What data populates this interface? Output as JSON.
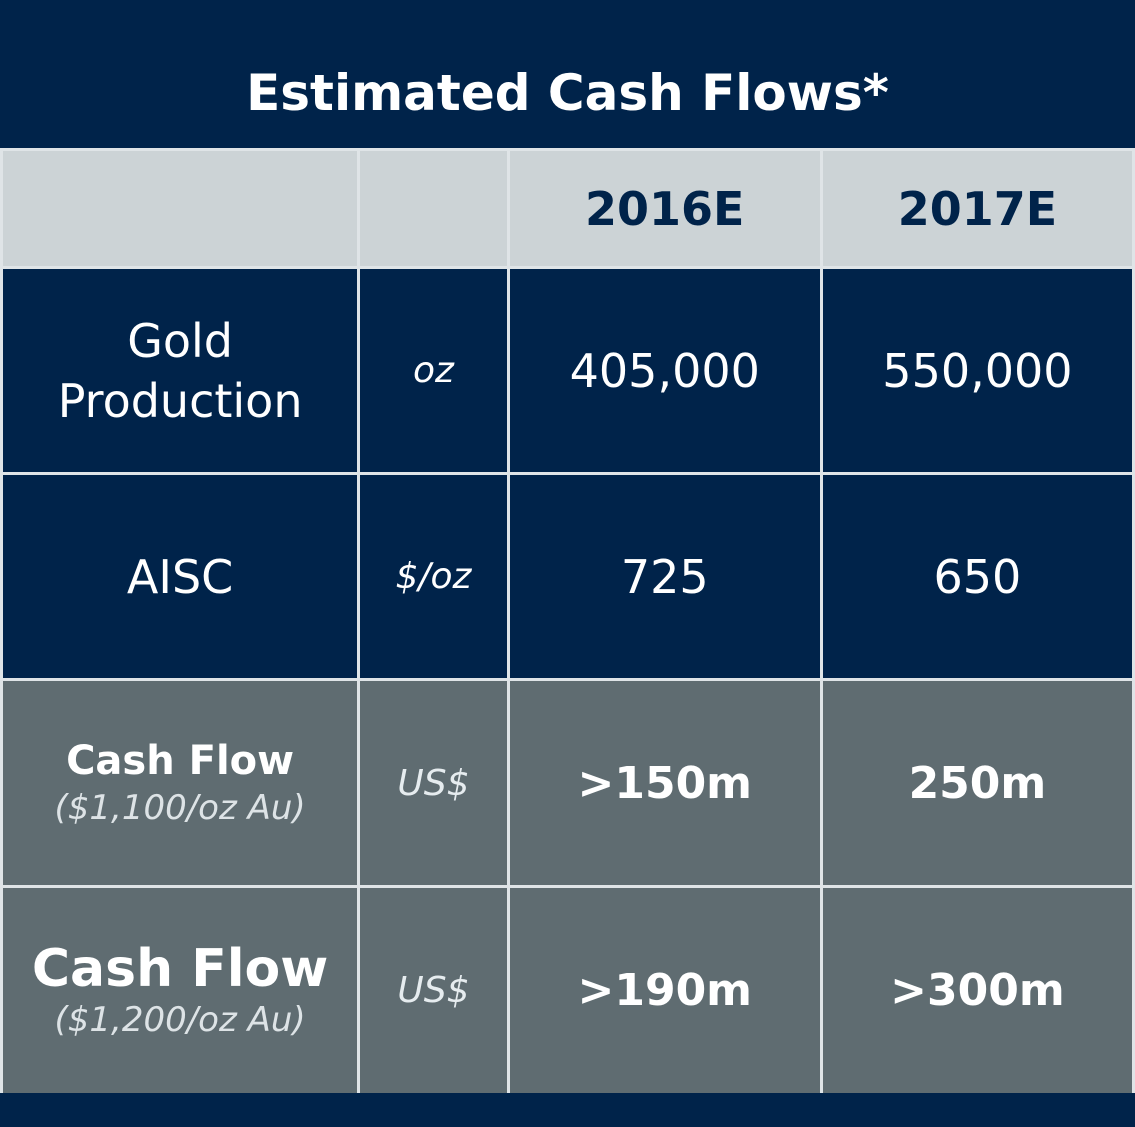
{
  "title": "Estimated Cash Flows*",
  "columns": [
    "",
    "",
    "2016E",
    "2017E"
  ],
  "rows": [
    {
      "label_line1": "Gold",
      "label_line2": "Production",
      "unit": "oz",
      "v2016": "405,000",
      "v2017": "550,000"
    },
    {
      "label": "AISC",
      "unit": "$/oz",
      "v2016": "725",
      "v2017": "650"
    },
    {
      "label": "Cash Flow",
      "sublabel": "($1,100/oz Au)",
      "unit": "US$",
      "v2016": ">150m",
      "v2017": "250m"
    },
    {
      "label": "Cash Flow",
      "sublabel": "($1,200/oz Au)",
      "unit": "US$",
      "v2016": ">190m",
      "v2017": ">300m"
    }
  ],
  "colors": {
    "navy": "#00234a",
    "header_grey": "#ccd3d6",
    "row_grey": "#5f6c71",
    "grid_line": "#dfe4e7"
  }
}
